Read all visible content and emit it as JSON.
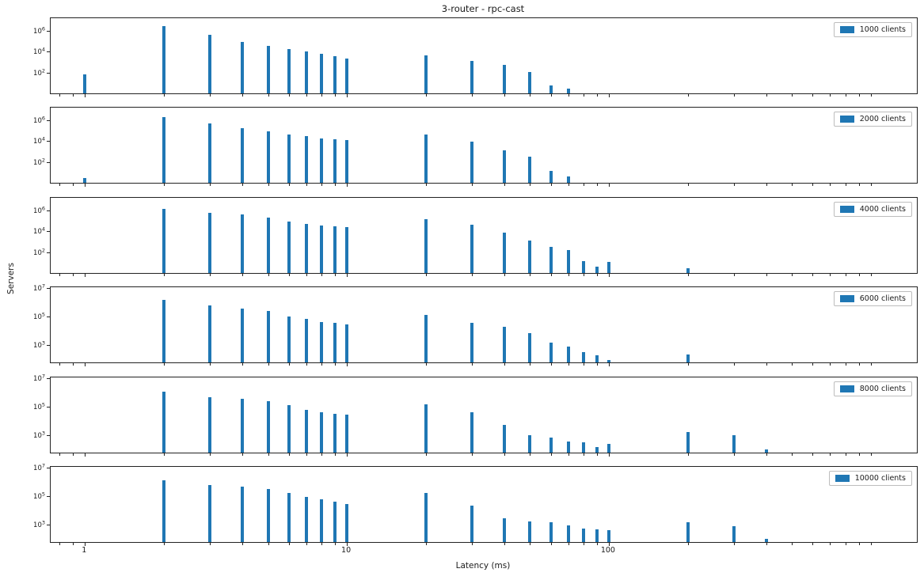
{
  "figure": {
    "title": "3-router - rpc-cast",
    "xlabel": "Latency (ms)",
    "ylabel": "Servers",
    "bar_color": "#1f77b4",
    "background_color": "#ffffff",
    "x_scale": "log",
    "y_scale": "log",
    "x_major_ticks": [
      1,
      10,
      100
    ],
    "x_major_tick_labels": [
      "1",
      "10",
      "100"
    ],
    "xlim": [
      0.74,
      1500
    ],
    "grid": false,
    "legend_position": "upper right"
  },
  "chart_data": [
    {
      "type": "bar",
      "legend": "1000 clients",
      "ylim": [
        1,
        16000000
      ],
      "ytick_exponents": [
        6,
        4,
        2
      ],
      "x": [
        1,
        2,
        3,
        4,
        5,
        6,
        7,
        8,
        9,
        10,
        20,
        30,
        40,
        50,
        60,
        70
      ],
      "values": [
        70,
        3000000,
        420000,
        90000,
        34000,
        19000,
        11000,
        6300,
        4000,
        2200,
        4700,
        1200,
        510,
        120,
        6,
        3
      ]
    },
    {
      "type": "bar",
      "legend": "2000 clients",
      "ylim": [
        1,
        16000000
      ],
      "ytick_exponents": [
        6,
        4,
        2
      ],
      "x": [
        1,
        2,
        3,
        4,
        5,
        6,
        7,
        8,
        9,
        10,
        20,
        30,
        40,
        50,
        60,
        70
      ],
      "values": [
        3,
        2000000,
        500000,
        180000,
        80000,
        42000,
        28000,
        19000,
        14000,
        12000,
        45000,
        9000,
        1400,
        300,
        15,
        4
      ]
    },
    {
      "type": "bar",
      "legend": "4000 clients",
      "ylim": [
        1,
        16000000
      ],
      "ytick_exponents": [
        6,
        4,
        2
      ],
      "x": [
        2,
        3,
        4,
        5,
        6,
        7,
        8,
        9,
        10,
        20,
        30,
        40,
        50,
        60,
        70,
        80,
        90,
        100,
        200
      ],
      "values": [
        1400000,
        600000,
        390000,
        200000,
        86000,
        52000,
        33000,
        28000,
        24000,
        135000,
        40000,
        7300,
        1400,
        340,
        150,
        14,
        4,
        11,
        3
      ]
    },
    {
      "type": "bar",
      "legend": "6000 clients",
      "ylim": [
        60,
        11000000
      ],
      "ytick_exponents": [
        7,
        5,
        3
      ],
      "x": [
        2,
        3,
        4,
        5,
        6,
        7,
        8,
        9,
        10,
        20,
        30,
        40,
        50,
        60,
        70,
        80,
        90,
        100,
        200
      ],
      "values": [
        1400000,
        600000,
        350000,
        230000,
        100000,
        66000,
        41000,
        34000,
        27000,
        120000,
        36000,
        18000,
        7000,
        1500,
        800,
        330,
        200,
        90,
        210
      ]
    },
    {
      "type": "bar",
      "legend": "8000 clients",
      "ylim": [
        60,
        11000000
      ],
      "ytick_exponents": [
        7,
        5,
        3
      ],
      "x": [
        2,
        3,
        4,
        5,
        6,
        7,
        8,
        9,
        10,
        20,
        30,
        40,
        50,
        60,
        70,
        80,
        90,
        100,
        200,
        300,
        400
      ],
      "values": [
        1100000,
        440000,
        360000,
        250000,
        130000,
        57000,
        40000,
        32000,
        26000,
        150000,
        42000,
        5000,
        1000,
        650,
        350,
        300,
        150,
        230,
        1700,
        1000,
        100
      ]
    },
    {
      "type": "bar",
      "legend": "10000 clients",
      "ylim": [
        60,
        11000000
      ],
      "ytick_exponents": [
        7,
        5,
        3
      ],
      "x": [
        2,
        3,
        4,
        5,
        6,
        7,
        8,
        9,
        10,
        20,
        30,
        40,
        50,
        60,
        70,
        80,
        90,
        100,
        200,
        300,
        400
      ],
      "values": [
        1300000,
        550000,
        470000,
        330000,
        160000,
        86000,
        58000,
        42000,
        29000,
        160000,
        22000,
        2600,
        1700,
        1400,
        870,
        530,
        440,
        400,
        1550,
        730,
        100
      ]
    }
  ]
}
